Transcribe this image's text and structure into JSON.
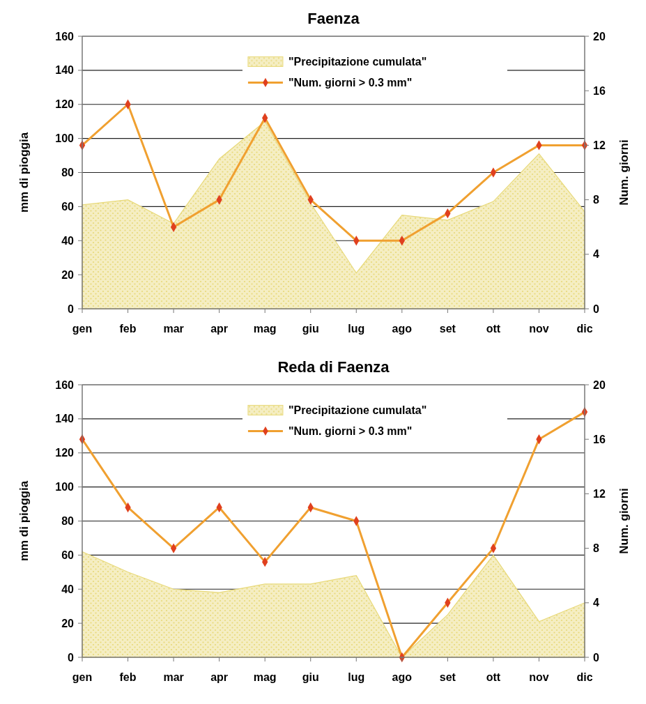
{
  "chart_data": [
    {
      "type": "area",
      "title": "Faenza",
      "ylabel": "mm di pioggia",
      "y2label": "Num. giorni",
      "categories": [
        "gen",
        "feb",
        "mar",
        "apr",
        "mag",
        "giu",
        "lug",
        "ago",
        "set",
        "ott",
        "nov",
        "dic"
      ],
      "series": [
        {
          "name": "\"Precipitazione cumulata\"",
          "color": "#e8d97a",
          "values": [
            61,
            64,
            50,
            88,
            110,
            62,
            21,
            55,
            52,
            63,
            91,
            57
          ]
        },
        {
          "name": "\"Num. giorni > 0.3 mm\"",
          "type": "line",
          "axis": "y2",
          "marker": "diamond",
          "color": "#f0a030",
          "values": [
            12,
            15,
            6,
            8,
            14,
            8,
            5,
            5,
            7,
            10,
            12,
            12
          ]
        }
      ],
      "ylim": [
        0,
        160
      ],
      "yticks": [
        0,
        20,
        40,
        60,
        80,
        100,
        120,
        140,
        160
      ],
      "y2lim": [
        0,
        20
      ],
      "y2ticks": [
        0,
        4,
        8,
        12,
        16,
        20
      ],
      "grid": "y",
      "legend": "top",
      "line_style": "solid"
    },
    {
      "type": "area",
      "title": "Reda di Faenza",
      "ylabel": "mm di pioggia",
      "y2label": "Num. giorni",
      "categories": [
        "gen",
        "feb",
        "mar",
        "apr",
        "mag",
        "giu",
        "lug",
        "ago",
        "set",
        "ott",
        "nov",
        "dic"
      ],
      "series": [
        {
          "name": "\"Precipitazione cumulata\"",
          "color": "#e8d97a",
          "values": [
            62,
            50,
            40,
            38,
            43,
            43,
            48,
            0,
            25,
            60,
            21,
            32
          ]
        },
        {
          "name": "\"Num. giorni > 0.3 mm\"",
          "type": "line",
          "axis": "y2",
          "marker": "diamond",
          "color": "#f0a030",
          "values": [
            16,
            11,
            8,
            11,
            7,
            11,
            10,
            0,
            4,
            8,
            16,
            18
          ]
        }
      ],
      "ylim": [
        0,
        160
      ],
      "yticks": [
        0,
        20,
        40,
        60,
        80,
        100,
        120,
        140,
        160
      ],
      "y2lim": [
        0,
        20
      ],
      "y2ticks": [
        0,
        4,
        8,
        12,
        16,
        20
      ],
      "grid": "y",
      "legend": "top",
      "line_style": "solid"
    }
  ]
}
